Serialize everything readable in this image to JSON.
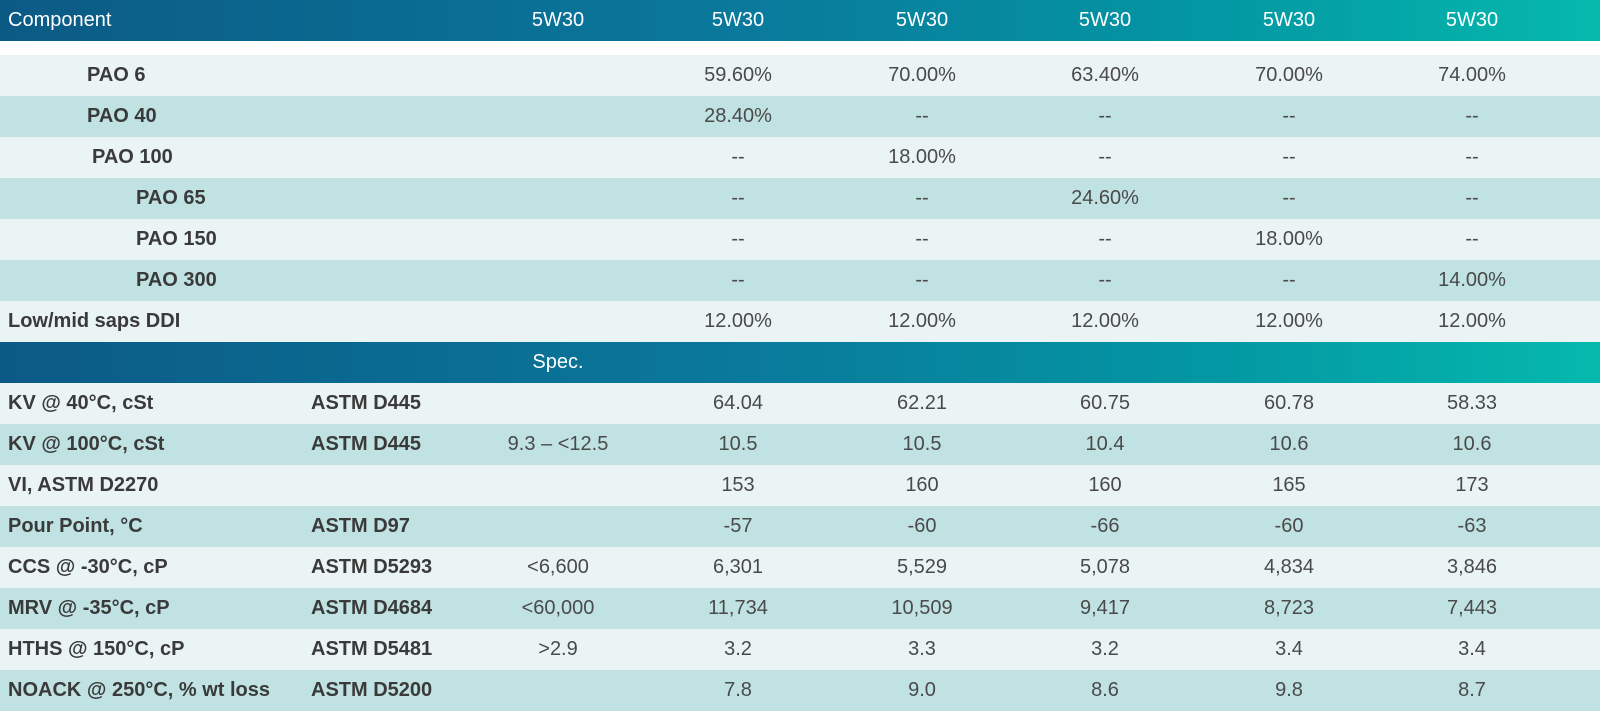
{
  "components": {
    "header": {
      "label": "Component",
      "cols": [
        "5W30",
        "5W30",
        "5W30",
        "5W30",
        "5W30",
        "5W30"
      ]
    },
    "rows": [
      {
        "prefix": "PAO",
        "grade": "6",
        "values": [
          "",
          "59.60%",
          "70.00%",
          "63.40%",
          "70.00%",
          "74.00%"
        ]
      },
      {
        "prefix": "PAO",
        "grade": "40",
        "values": [
          "",
          "28.40%",
          "--",
          "--",
          "--",
          "--"
        ]
      },
      {
        "prefix": "PAO",
        "grade": "100",
        "values": [
          "",
          "--",
          "18.00%",
          "--",
          "--",
          "--"
        ]
      },
      {
        "prefix": "PAO",
        "grade": "65",
        "values": [
          "",
          "--",
          "--",
          "24.60%",
          "--",
          "--"
        ]
      },
      {
        "prefix": "PAO",
        "grade": "150",
        "values": [
          "",
          "--",
          "--",
          "--",
          "18.00%",
          "--"
        ]
      },
      {
        "prefix": "PAO",
        "grade": "300",
        "values": [
          "",
          "--",
          "--",
          "--",
          "--",
          "14.00%"
        ]
      },
      {
        "prefix": "Low/mid saps DDI",
        "grade": "",
        "values": [
          "",
          "12.00%",
          "12.00%",
          "12.00%",
          "12.00%",
          "12.00%"
        ]
      }
    ]
  },
  "properties": {
    "header": {
      "spec_label": "Spec."
    },
    "rows": [
      {
        "name": "KV @ 40°C, cSt",
        "method": "ASTM D445",
        "spec": "",
        "values": [
          "64.04",
          "62.21",
          "60.75",
          "60.78",
          "58.33"
        ]
      },
      {
        "name": "KV @ 100°C, cSt",
        "method": "ASTM D445",
        "spec": "9.3 – <12.5",
        "values": [
          "10.5",
          "10.5",
          "10.4",
          "10.6",
          "10.6"
        ]
      },
      {
        "name": "VI, ASTM D2270",
        "method": "",
        "spec": "",
        "values": [
          "153",
          "160",
          "160",
          "165",
          "173"
        ]
      },
      {
        "name": "Pour Point, °C",
        "method": "ASTM D97",
        "spec": "",
        "values": [
          "-57",
          "-60",
          "-66",
          "-60",
          "-63"
        ]
      },
      {
        "name": "CCS @ -30°C, cP",
        "method": "ASTM D5293",
        "spec": "<6,600",
        "values": [
          "6,301",
          "5,529",
          "5,078",
          "4,834",
          "3,846"
        ]
      },
      {
        "name": "MRV @ -35°C, cP",
        "method": "ASTM D4684",
        "spec": "<60,000",
        "values": [
          "11,734",
          "10,509",
          "9,417",
          "8,723",
          "7,443"
        ]
      },
      {
        "name": "HTHS @ 150°C, cP",
        "method": "ASTM D5481",
        "spec": ">2.9",
        "values": [
          "3.2",
          "3.3",
          "3.2",
          "3.4",
          "3.4"
        ]
      },
      {
        "name": "NOACK @ 250°C, % wt loss",
        "method": "ASTM D5200",
        "spec": "",
        "values": [
          "7.8",
          "9.0",
          "8.6",
          "9.8",
          "8.7"
        ]
      }
    ]
  },
  "colors": {
    "header_start": "#0b5a85",
    "header_end": "#05b9ad",
    "row_light": "#eaf4f4",
    "row_dark": "#c0e2e2"
  }
}
